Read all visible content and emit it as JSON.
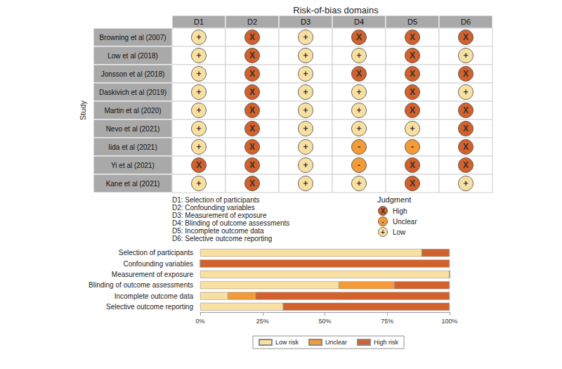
{
  "chart_data": [
    {
      "type": "matrix",
      "title": "Risk-of-bias domains",
      "y_label": "Study",
      "x_categories": [
        "D1",
        "D2",
        "D3",
        "D4",
        "D5",
        "D6"
      ],
      "y_categories": [
        "Browning et al (2007)",
        "Low et al (2018)",
        "Jonsson et al (2018)",
        "Daskivich et al (2019)",
        "Martin et al (2020)",
        "Nevo et al (2021)",
        "Iida et al (2021)",
        "Yi et al (2021)",
        "Kane et al (2021)"
      ],
      "cells": [
        [
          "Low",
          "High",
          "Low",
          "High",
          "High",
          "High"
        ],
        [
          "Low",
          "High",
          "Low",
          "Low",
          "High",
          "Low"
        ],
        [
          "Low",
          "High",
          "Low",
          "High",
          "High",
          "High"
        ],
        [
          "Low",
          "High",
          "Low",
          "Low",
          "High",
          "Low"
        ],
        [
          "Low",
          "High",
          "Low",
          "Low",
          "High",
          "High"
        ],
        [
          "Low",
          "High",
          "Low",
          "Low",
          "Low",
          "High"
        ],
        [
          "Low",
          "High",
          "Low",
          "Unclear",
          "Unclear",
          "High"
        ],
        [
          "High",
          "High",
          "Low",
          "Unclear",
          "High",
          "High"
        ],
        [
          "Low",
          "High",
          "Low",
          "Low",
          "High",
          "Low"
        ]
      ],
      "domains": [
        "D1: Selection of participants",
        "D2: Confounding variables",
        "D3: Measurement of exposure",
        "D4: Blinding of outcome assessments",
        "D5: Incomplete outcome data",
        "D6: Selective outcome reporting"
      ],
      "legend_title": "Judgment",
      "judgments": [
        {
          "name": "High",
          "symbol": "X",
          "color": "#d2612c"
        },
        {
          "name": "Unclear",
          "symbol": "-",
          "color": "#f29b38"
        },
        {
          "name": "Low",
          "symbol": "+",
          "color": "#f8dfa2"
        }
      ]
    },
    {
      "type": "bar",
      "orientation": "horizontal",
      "stacked": true,
      "legend": "bottom",
      "categories": [
        "Selection of participants",
        "Confounding variables",
        "Measurement of exposure",
        "Blinding of outcome assessments",
        "Incomplete outcome data",
        "Selective outcome reporting"
      ],
      "series": [
        {
          "name": "Low risk",
          "color": "#f8dfa2",
          "values": [
            88.9,
            0,
            100,
            55.6,
            11.1,
            33.3
          ]
        },
        {
          "name": "Unclear",
          "color": "#f29b38",
          "values": [
            0,
            0,
            0,
            22.2,
            11.1,
            0
          ]
        },
        {
          "name": "High risk",
          "color": "#d2612c",
          "values": [
            11.1,
            100,
            0,
            22.2,
            77.8,
            66.7
          ]
        }
      ],
      "xlim": [
        0,
        100
      ],
      "xticks": [
        {
          "value": 0,
          "label": "0%"
        },
        {
          "value": 25,
          "label": "25%"
        },
        {
          "value": 50,
          "label": "50%"
        },
        {
          "value": 75,
          "label": "75%"
        },
        {
          "value": 100,
          "label": "100%"
        }
      ]
    }
  ]
}
